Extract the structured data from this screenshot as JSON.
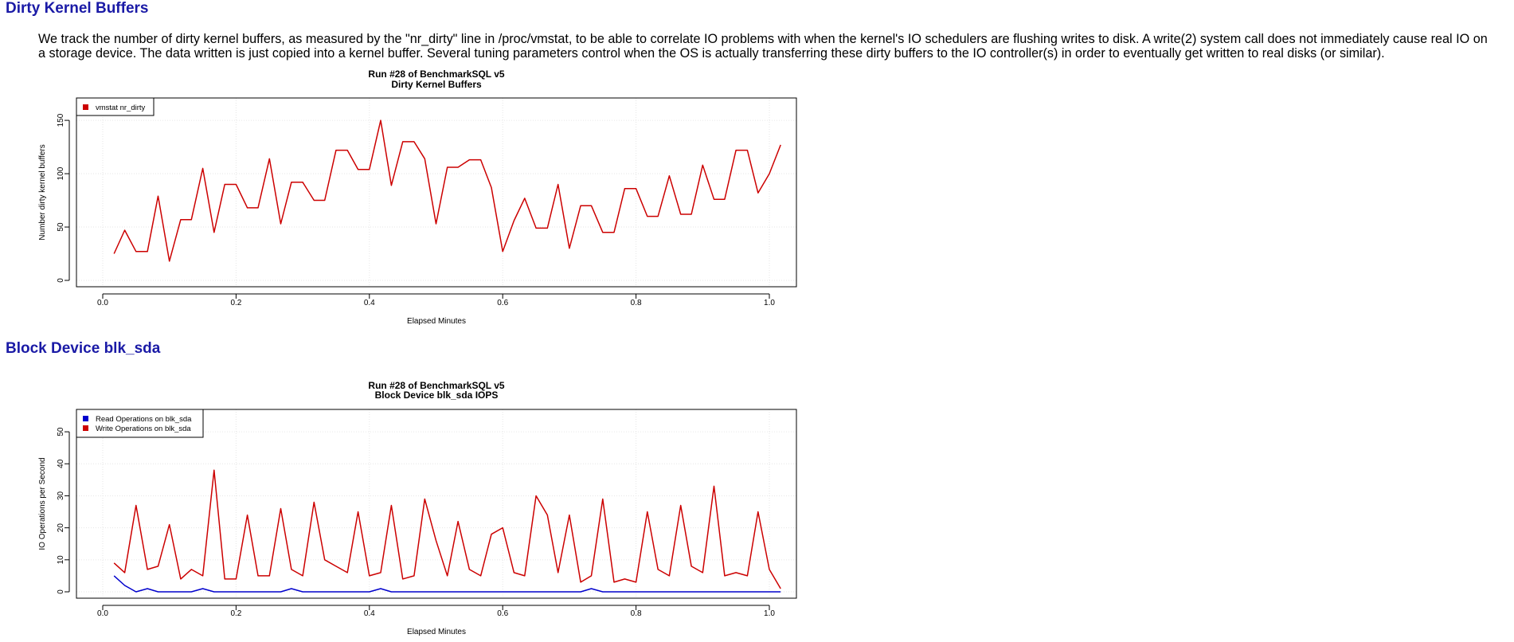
{
  "section1": {
    "heading": "Dirty Kernel Buffers",
    "description": "We track the number of dirty kernel buffers, as measured by the \"nr_dirty\" line in /proc/vmstat, to be able to correlate IO problems with when the kernel's IO schedulers are flushing writes to disk. A write(2) system call does not immediately cause real IO on a storage device. The data written is just copied into a kernel buffer. Several tuning parameters control when the OS is actually transferring these dirty buffers to the IO controller(s) in order to eventually get written to real disks (or similar)."
  },
  "section2": {
    "heading": "Block Device blk_sda"
  },
  "colors": {
    "heading": "#1a1aa6",
    "red": "#cc0000",
    "blue": "#0000cc"
  },
  "chart_data": [
    {
      "type": "line",
      "title": "Run #28 of BenchmarkSQL v5",
      "subtitle": "Dirty Kernel Buffers",
      "xlabel": "Elapsed Minutes",
      "ylabel": "Number dirty kernel buffers",
      "xlim": [
        0,
        1.02
      ],
      "ylim": [
        0,
        165
      ],
      "xticks": [
        "0.0",
        "0.2",
        "0.4",
        "0.6",
        "0.8",
        "1.0"
      ],
      "yticks": [
        "0",
        "50",
        "100",
        "150"
      ],
      "grid": true,
      "legend_position": "top-left",
      "series": [
        {
          "name": "vmstat nr_dirty",
          "color": "#cc0000",
          "x": [
            0.017,
            0.033,
            0.05,
            0.067,
            0.083,
            0.1,
            0.117,
            0.133,
            0.15,
            0.167,
            0.183,
            0.2,
            0.217,
            0.233,
            0.25,
            0.267,
            0.283,
            0.3,
            0.317,
            0.333,
            0.35,
            0.367,
            0.383,
            0.4,
            0.417,
            0.433,
            0.45,
            0.467,
            0.483,
            0.5,
            0.517,
            0.533,
            0.55,
            0.567,
            0.583,
            0.6,
            0.617,
            0.633,
            0.65,
            0.667,
            0.683,
            0.7,
            0.717,
            0.733,
            0.75,
            0.767,
            0.783,
            0.8,
            0.817,
            0.833,
            0.85,
            0.867,
            0.883,
            0.9,
            0.917,
            0.933,
            0.95,
            0.967,
            0.983,
            1.0,
            1.017
          ],
          "values": [
            25,
            47,
            27,
            27,
            79,
            18,
            57,
            57,
            105,
            45,
            90,
            90,
            68,
            68,
            114,
            53,
            92,
            92,
            75,
            75,
            122,
            122,
            104,
            104,
            150,
            89,
            130,
            130,
            114,
            53,
            106,
            106,
            113,
            113,
            87,
            27,
            56,
            77,
            49,
            49,
            90,
            30,
            70,
            70,
            45,
            45,
            86,
            86,
            60,
            60,
            98,
            62,
            62,
            108,
            76,
            76,
            122,
            122,
            82,
            100,
            127
          ]
        }
      ]
    },
    {
      "type": "line",
      "title": "Run #28 of BenchmarkSQL v5",
      "subtitle": "Block Device blk_sda IOPS",
      "xlabel": "Elapsed Minutes",
      "ylabel": "IO Operations per Second",
      "xlim": [
        0,
        1.02
      ],
      "ylim": [
        0,
        55
      ],
      "xticks": [
        "0.0",
        "0.2",
        "0.4",
        "0.6",
        "0.8",
        "1.0"
      ],
      "yticks": [
        "0",
        "10",
        "20",
        "30",
        "40",
        "50"
      ],
      "grid": true,
      "legend_position": "top-left",
      "series": [
        {
          "name": "Read Operations on blk_sda",
          "color": "#0000cc",
          "x": [
            0.017,
            0.033,
            0.05,
            0.067,
            0.083,
            0.1,
            0.117,
            0.133,
            0.15,
            0.167,
            0.183,
            0.2,
            0.217,
            0.233,
            0.25,
            0.267,
            0.283,
            0.3,
            0.317,
            0.333,
            0.35,
            0.367,
            0.383,
            0.4,
            0.417,
            0.433,
            0.45,
            0.467,
            0.483,
            0.5,
            0.517,
            0.533,
            0.55,
            0.567,
            0.583,
            0.6,
            0.617,
            0.633,
            0.65,
            0.667,
            0.683,
            0.7,
            0.717,
            0.733,
            0.75,
            0.767,
            0.783,
            0.8,
            0.817,
            0.833,
            0.85,
            0.867,
            0.883,
            0.9,
            0.917,
            0.933,
            0.95,
            0.967,
            0.983,
            1.0,
            1.017
          ],
          "values": [
            5,
            2,
            0,
            1,
            0,
            0,
            0,
            0,
            1,
            0,
            0,
            0,
            0,
            0,
            0,
            0,
            1,
            0,
            0,
            0,
            0,
            0,
            0,
            0,
            1,
            0,
            0,
            0,
            0,
            0,
            0,
            0,
            0,
            0,
            0,
            0,
            0,
            0,
            0,
            0,
            0,
            0,
            0,
            1,
            0,
            0,
            0,
            0,
            0,
            0,
            0,
            0,
            0,
            0,
            0,
            0,
            0,
            0,
            0,
            0,
            0
          ]
        },
        {
          "name": "Write Operations on blk_sda",
          "color": "#cc0000",
          "x": [
            0.017,
            0.033,
            0.05,
            0.067,
            0.083,
            0.1,
            0.117,
            0.133,
            0.15,
            0.167,
            0.183,
            0.2,
            0.217,
            0.233,
            0.25,
            0.267,
            0.283,
            0.3,
            0.317,
            0.333,
            0.35,
            0.367,
            0.383,
            0.4,
            0.417,
            0.433,
            0.45,
            0.467,
            0.483,
            0.5,
            0.517,
            0.533,
            0.55,
            0.567,
            0.583,
            0.6,
            0.617,
            0.633,
            0.65,
            0.667,
            0.683,
            0.7,
            0.717,
            0.733,
            0.75,
            0.767,
            0.783,
            0.8,
            0.817,
            0.833,
            0.85,
            0.867,
            0.883,
            0.9,
            0.917,
            0.933,
            0.95,
            0.967,
            0.983,
            1.0,
            1.017
          ],
          "values": [
            9,
            6,
            27,
            7,
            8,
            21,
            4,
            7,
            5,
            38,
            4,
            4,
            24,
            5,
            5,
            26,
            7,
            5,
            28,
            10,
            8,
            6,
            25,
            5,
            6,
            27,
            4,
            5,
            29,
            16,
            5,
            22,
            7,
            5,
            18,
            20,
            6,
            5,
            30,
            24,
            6,
            24,
            3,
            5,
            29,
            3,
            4,
            3,
            25,
            7,
            5,
            27,
            8,
            6,
            33,
            5,
            6,
            5,
            25,
            7,
            1
          ]
        }
      ]
    }
  ]
}
